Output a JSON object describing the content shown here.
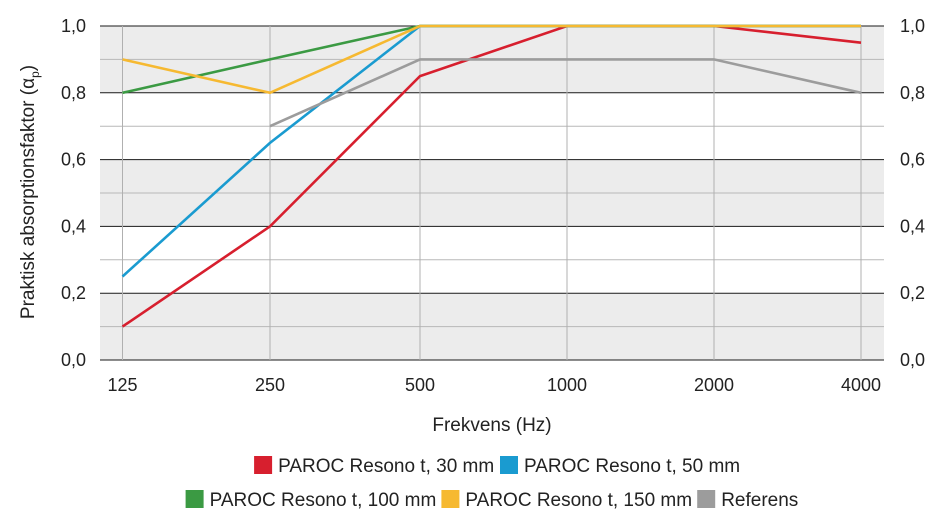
{
  "chart_data": {
    "type": "line",
    "x": [
      "125",
      "250",
      "500",
      "1000",
      "2000",
      "4000"
    ],
    "xlabel": "Frekvens (Hz)",
    "ylabel_main": "Praktisk absorptionsfaktor (α",
    "ylabel_sub": "p",
    "ylabel_close": ")",
    "ylim": [
      0,
      1
    ],
    "yticks": [
      "0,0",
      "0,2",
      "0,4",
      "0,6",
      "0,8",
      "1,0"
    ],
    "ytick_values": [
      0,
      0.2,
      0.4,
      0.6,
      0.8,
      1.0
    ],
    "grid": true,
    "shaded_bands": true,
    "secondary_y_axis": true,
    "legend_position": "bottom",
    "series": [
      {
        "name": "PAROC Resono t, 30 mm",
        "color": "#d71f2e",
        "values": [
          0.1,
          0.4,
          0.85,
          1.0,
          1.0,
          0.95
        ]
      },
      {
        "name": "PAROC Resono t, 50 mm",
        "color": "#1a9bd0",
        "values": [
          0.25,
          0.65,
          1.0,
          1.0,
          1.0,
          1.0
        ]
      },
      {
        "name": "PAROC Resono t, 100 mm",
        "color": "#3b9a43",
        "values": [
          0.8,
          0.9,
          1.0,
          1.0,
          1.0,
          1.0
        ]
      },
      {
        "name": "PAROC Resono t, 150 mm",
        "color": "#f6b931",
        "values": [
          0.9,
          0.8,
          1.0,
          1.0,
          1.0,
          1.0
        ]
      },
      {
        "name": "Referens",
        "color": "#9c9c9c",
        "values": [
          null,
          0.7,
          0.9,
          0.9,
          0.9,
          0.8
        ]
      }
    ]
  }
}
